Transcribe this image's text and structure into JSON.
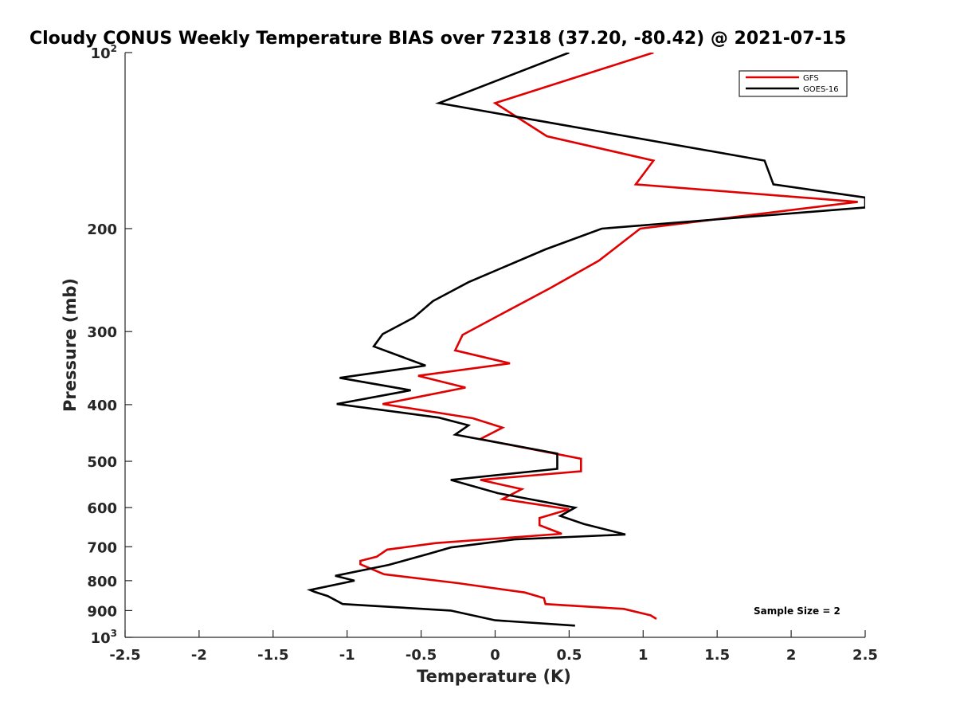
{
  "chart_data": {
    "type": "line",
    "title": "Cloudy CONUS Weekly Temperature BIAS over 72318 (37.20, -80.42) @ 2021-07-15",
    "xlabel": "Temperature (K)",
    "ylabel": "Pressure (mb)",
    "xlim": [
      -2.5,
      2.5
    ],
    "ylim": [
      100,
      1000
    ],
    "yscale": "log",
    "y_reversed": true,
    "x_ticks": [
      "-2.5",
      "-2",
      "-1.5",
      "-1",
      "-0.5",
      "0",
      "0.5",
      "1",
      "1.5",
      "2",
      "2.5"
    ],
    "x_tick_values": [
      -2.5,
      -2,
      -1.5,
      -1,
      -0.5,
      0,
      0.5,
      1,
      1.5,
      2,
      2.5
    ],
    "y_ticks": [
      {
        "value": 100,
        "base": "10",
        "exp": "2"
      },
      {
        "value": 200,
        "label": "200"
      },
      {
        "value": 300,
        "label": "300"
      },
      {
        "value": 400,
        "label": "400"
      },
      {
        "value": 500,
        "label": "500"
      },
      {
        "value": 600,
        "label": "600"
      },
      {
        "value": 700,
        "label": "700"
      },
      {
        "value": 800,
        "label": "800"
      },
      {
        "value": 900,
        "label": "900"
      },
      {
        "value": 1000,
        "base": "10",
        "exp": "3"
      }
    ],
    "legend_position": "top-right",
    "annotation": "Sample Size = 2",
    "series": [
      {
        "name": "GFS",
        "color": "#e00000",
        "x": [
          1.07,
          0,
          0.35,
          1.07,
          0.95,
          2.45,
          0.98,
          0.7,
          0.37,
          0.02,
          -0.22,
          -0.27,
          0.1,
          -0.52,
          -0.2,
          -0.76,
          -0.15,
          0.05,
          -0.1,
          0.58,
          0.58,
          -0.1,
          0.18,
          0.05,
          0.5,
          0.3,
          0.3,
          0.45,
          -0.4,
          -0.73,
          -0.8,
          -0.91,
          -0.91,
          -0.75,
          -0.25,
          0.2,
          0.33,
          0.34,
          0.87,
          1.05,
          1.09
        ],
        "y": [
          100,
          122,
          139,
          153,
          168,
          180,
          200,
          227,
          253,
          282,
          304,
          323,
          340,
          357,
          374,
          399,
          422,
          438,
          458,
          495,
          520,
          538,
          558,
          580,
          604,
          625,
          643,
          665,
          690,
          708,
          728,
          740,
          750,
          780,
          808,
          838,
          857,
          877,
          894,
          917,
          930
        ]
      },
      {
        "name": "GOES-16",
        "color": "#000000",
        "x": [
          0.5,
          -0.38,
          1.82,
          1.88,
          2.5,
          2.5,
          0.72,
          0.34,
          -0.18,
          -0.42,
          -0.55,
          -0.76,
          -0.82,
          -0.47,
          -1.05,
          -0.57,
          -1.07,
          -0.38,
          -0.18,
          -0.27,
          0.42,
          0.42,
          -0.3,
          0.02,
          0.54,
          0.44,
          0.6,
          0.88,
          0.13,
          -0.3,
          -0.45,
          -0.72,
          -1.08,
          -0.95,
          -1.25,
          -1.22,
          -1.13,
          -1.03,
          -0.3,
          0,
          0.54
        ],
        "y": [
          100,
          122,
          153,
          168,
          177,
          184,
          200,
          217,
          247,
          266,
          284,
          303,
          318,
          343,
          360,
          378,
          399,
          421,
          434,
          450,
          485,
          515,
          538,
          567,
          600,
          620,
          640,
          667,
          680,
          702,
          720,
          752,
          785,
          800,
          830,
          836,
          850,
          877,
          900,
          935,
          955
        ]
      }
    ]
  }
}
